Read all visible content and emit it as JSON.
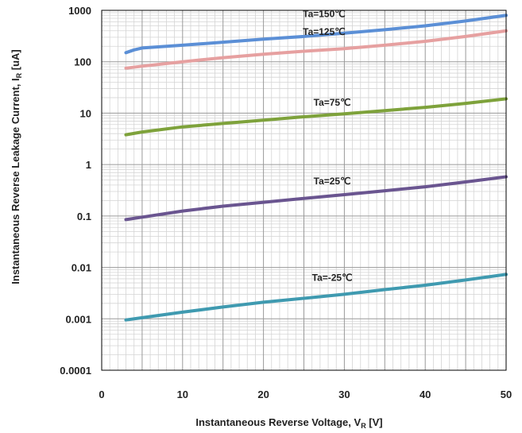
{
  "chart_data": {
    "type": "line",
    "title": "",
    "xlabel": {
      "main": "Instantaneous Reverse Voltage, V",
      "sub": "R",
      "unit": " [V]"
    },
    "ylabel": {
      "main": "Instantaneous Reverse Leakage Current, I",
      "sub": "R",
      "unit": " [uA]"
    },
    "xlim": [
      0,
      50
    ],
    "ylim": [
      0.0001,
      1000
    ],
    "yscale": "log",
    "grid": true,
    "x_ticks": [
      {
        "value": 0,
        "label": "0"
      },
      {
        "value": 10,
        "label": "10"
      },
      {
        "value": 20,
        "label": "20"
      },
      {
        "value": 30,
        "label": "30"
      },
      {
        "value": 40,
        "label": "40"
      },
      {
        "value": 50,
        "label": "50"
      }
    ],
    "y_ticks": [
      {
        "value": 1000,
        "label": "1000"
      },
      {
        "value": 100,
        "label": "100"
      },
      {
        "value": 10,
        "label": "10"
      },
      {
        "value": 1,
        "label": "1"
      },
      {
        "value": 0.1,
        "label": "0.1"
      },
      {
        "value": 0.01,
        "label": "0.01"
      },
      {
        "value": 0.001,
        "label": "0.001"
      },
      {
        "value": 0.0001,
        "label": "0.0001"
      }
    ],
    "series": [
      {
        "name": "Ta=150℃",
        "color": "#5b8fd6",
        "label_at": {
          "x": 27.5,
          "y": 740
        },
        "points": [
          [
            3,
            150
          ],
          [
            4,
            170
          ],
          [
            5,
            185
          ],
          [
            10,
            210
          ],
          [
            15,
            240
          ],
          [
            20,
            275
          ],
          [
            25,
            310
          ],
          [
            30,
            360
          ],
          [
            35,
            420
          ],
          [
            40,
            500
          ],
          [
            45,
            620
          ],
          [
            50,
            800
          ]
        ]
      },
      {
        "name": "Ta=125℃",
        "color": "#e6a0a0",
        "label_at": {
          "x": 27.5,
          "y": 330
        },
        "points": [
          [
            3,
            75
          ],
          [
            5,
            82
          ],
          [
            10,
            100
          ],
          [
            15,
            120
          ],
          [
            20,
            140
          ],
          [
            25,
            160
          ],
          [
            30,
            180
          ],
          [
            35,
            210
          ],
          [
            40,
            250
          ],
          [
            45,
            310
          ],
          [
            50,
            400
          ]
        ]
      },
      {
        "name": "Ta=75℃",
        "color": "#7ea23b",
        "label_at": {
          "x": 28.5,
          "y": 14
        },
        "points": [
          [
            3,
            3.8
          ],
          [
            5,
            4.3
          ],
          [
            10,
            5.4
          ],
          [
            15,
            6.3
          ],
          [
            20,
            7.3
          ],
          [
            25,
            8.5
          ],
          [
            30,
            9.7
          ],
          [
            35,
            11.2
          ],
          [
            40,
            13
          ],
          [
            45,
            15.5
          ],
          [
            50,
            19
          ]
        ]
      },
      {
        "name": "Ta=25℃",
        "color": "#6a5590",
        "label_at": {
          "x": 28.5,
          "y": 0.41
        },
        "points": [
          [
            3,
            0.085
          ],
          [
            5,
            0.095
          ],
          [
            10,
            0.125
          ],
          [
            15,
            0.155
          ],
          [
            20,
            0.185
          ],
          [
            25,
            0.22
          ],
          [
            30,
            0.26
          ],
          [
            35,
            0.31
          ],
          [
            40,
            0.37
          ],
          [
            45,
            0.46
          ],
          [
            50,
            0.58
          ]
        ]
      },
      {
        "name": "Ta=-25℃",
        "color": "#3f9ab0",
        "label_at": {
          "x": 28.5,
          "y": 0.0055
        },
        "points": [
          [
            3,
            0.00095
          ],
          [
            5,
            0.00105
          ],
          [
            10,
            0.00135
          ],
          [
            15,
            0.0017
          ],
          [
            20,
            0.0021
          ],
          [
            25,
            0.0025
          ],
          [
            30,
            0.003
          ],
          [
            35,
            0.0037
          ],
          [
            40,
            0.0045
          ],
          [
            45,
            0.0057
          ],
          [
            50,
            0.0073
          ]
        ]
      }
    ]
  }
}
